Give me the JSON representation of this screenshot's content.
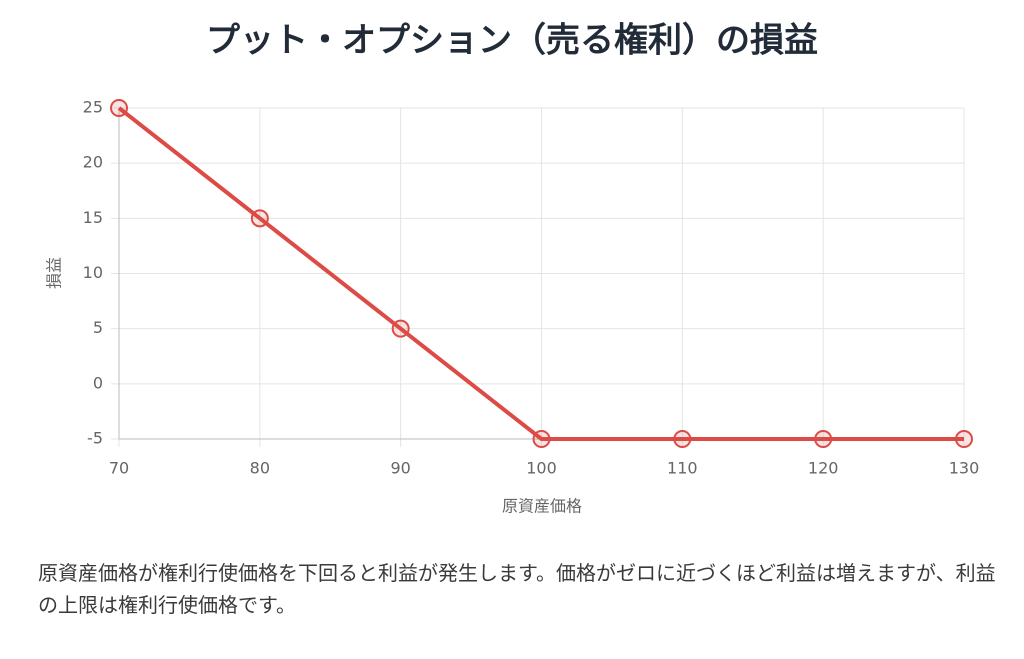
{
  "chart_data": {
    "type": "line",
    "title": "プット・オプション（売る権利）の損益",
    "x_label": "原資産価格",
    "y_label": "損益",
    "x": [
      70,
      80,
      90,
      100,
      110,
      120,
      130
    ],
    "series": [
      {
        "color": "#dc4b45",
        "values": [
          25,
          15,
          5,
          -5,
          -5,
          -5,
          -5
        ]
      }
    ],
    "xlim": [
      70,
      130
    ],
    "xticks": [
      70,
      80,
      90,
      100,
      110,
      120,
      130
    ],
    "ylim": [
      -5,
      25
    ],
    "yticks": [
      -5,
      0,
      5,
      10,
      15,
      20,
      25
    ],
    "grid": true
  },
  "description": "原資産価格が権利行使価格を下回ると利益が発生します。価格がゼロに近づくほど利益は増えますが、利益の上限は権利行使価格です。"
}
